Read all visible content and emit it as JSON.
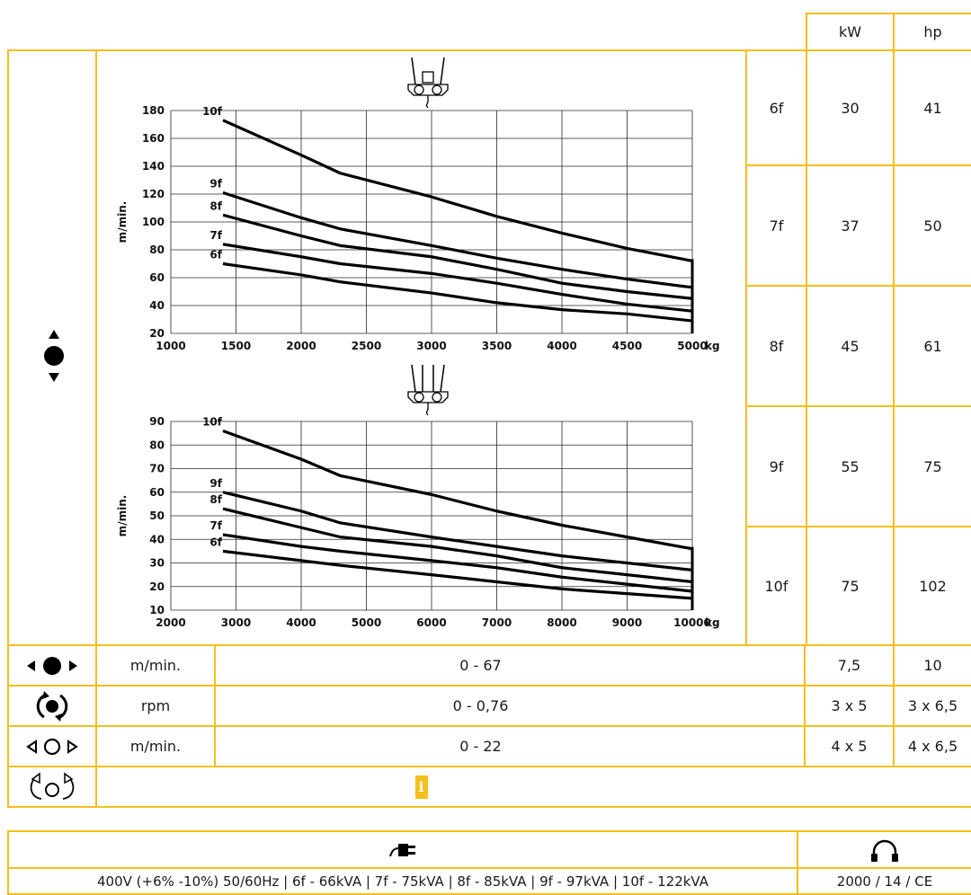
{
  "header": {
    "kw": "kW",
    "hp": "hp"
  },
  "power_rows": [
    {
      "label": "6f",
      "kw": "30",
      "hp": "41"
    },
    {
      "label": "7f",
      "kw": "37",
      "hp": "50"
    },
    {
      "label": "8f",
      "kw": "45",
      "hp": "61"
    },
    {
      "label": "9f",
      "kw": "55",
      "hp": "75"
    },
    {
      "label": "10f",
      "kw": "75",
      "hp": "102"
    }
  ],
  "drive_rows": [
    {
      "icon": "travel-filled-arrows-icon",
      "unit": "m/min.",
      "range": "0 - 67",
      "kw": "7,5",
      "hp": "10"
    },
    {
      "icon": "rotation-icon",
      "unit": "rpm",
      "range": "0 - 0,76",
      "kw": "3 x 5",
      "hp": "3 x 6,5"
    },
    {
      "icon": "travel-outline-arrows-icon",
      "unit": "m/min.",
      "range": "0 - 22",
      "kw": "4 x 5",
      "hp": "4 x 6,5"
    }
  ],
  "option_row": {
    "icon": "tilt-rotate-icon",
    "info": "i"
  },
  "supply": {
    "plug_icon": "power-plug-icon",
    "headphones_icon": "headphones-icon",
    "text": "400V (+6% -10%) 50/60Hz | 6f - 66kVA | 7f - 75kVA | 8f - 85kVA | 9f - 97kVA | 10f - 122kVA",
    "noise": "2000 / 14 / CE"
  },
  "chart_data": [
    {
      "type": "line",
      "title": "",
      "xlabel": "kg",
      "ylabel": "m/min.",
      "xlim": [
        1000,
        5000
      ],
      "ylim": [
        20,
        180
      ],
      "x_ticks": [
        "1000",
        "1500",
        "2000",
        "2500",
        "3000",
        "3500",
        "4000",
        "4500",
        "5000"
      ],
      "y_ticks": [
        "20",
        "40",
        "60",
        "80",
        "100",
        "120",
        "140",
        "160",
        "180"
      ],
      "grid": true,
      "series": [
        {
          "name": "10f",
          "x": [
            1400,
            2000,
            2300,
            3000,
            3500,
            4000,
            4500,
            5000
          ],
          "y": [
            173,
            148,
            135,
            118,
            104,
            92,
            81,
            72
          ]
        },
        {
          "name": "9f",
          "x": [
            1400,
            2000,
            2300,
            3000,
            3500,
            4000,
            4500,
            5000
          ],
          "y": [
            121,
            103,
            95,
            83,
            74,
            66,
            59,
            53
          ]
        },
        {
          "name": "8f",
          "x": [
            1400,
            2000,
            2300,
            3000,
            3500,
            4000,
            4500,
            5000
          ],
          "y": [
            105,
            90,
            83,
            75,
            66,
            56,
            50,
            45
          ]
        },
        {
          "name": "7f",
          "x": [
            1400,
            2000,
            2300,
            3000,
            3500,
            4000,
            4500,
            5000
          ],
          "y": [
            84,
            75,
            70,
            63,
            56,
            48,
            41,
            36
          ]
        },
        {
          "name": "6f",
          "x": [
            1400,
            2000,
            2300,
            3000,
            3500,
            4000,
            4500,
            5000
          ],
          "y": [
            70,
            62,
            57,
            49,
            42,
            37,
            34,
            29
          ]
        }
      ]
    },
    {
      "type": "line",
      "title": "",
      "xlabel": "kg",
      "ylabel": "m/min.",
      "xlim": [
        2000,
        10000
      ],
      "ylim": [
        10,
        90
      ],
      "x_ticks": [
        "2000",
        "3000",
        "4000",
        "5000",
        "6000",
        "7000",
        "8000",
        "9000",
        "10000"
      ],
      "y_ticks": [
        "10",
        "20",
        "30",
        "40",
        "50",
        "60",
        "70",
        "80",
        "90"
      ],
      "grid": true,
      "series": [
        {
          "name": "10f",
          "x": [
            2800,
            4000,
            4600,
            6000,
            7000,
            8000,
            9000,
            10000
          ],
          "y": [
            86,
            74,
            67,
            59,
            52,
            46,
            41,
            36
          ]
        },
        {
          "name": "9f",
          "x": [
            2800,
            4000,
            4600,
            6000,
            7000,
            8000,
            9000,
            10000
          ],
          "y": [
            60,
            52,
            47,
            41,
            37,
            33,
            30,
            27
          ]
        },
        {
          "name": "8f",
          "x": [
            2800,
            4000,
            4600,
            6000,
            7000,
            8000,
            9000,
            10000
          ],
          "y": [
            53,
            45,
            41,
            37,
            33,
            28,
            25,
            22
          ]
        },
        {
          "name": "7f",
          "x": [
            2800,
            4000,
            4600,
            6000,
            7000,
            8000,
            9000,
            10000
          ],
          "y": [
            42,
            37,
            35,
            31,
            28,
            24,
            21,
            18
          ]
        },
        {
          "name": "6f",
          "x": [
            2800,
            4000,
            4600,
            6000,
            7000,
            8000,
            9000,
            10000
          ],
          "y": [
            35,
            31,
            29,
            25,
            22,
            19,
            17,
            15
          ]
        }
      ]
    }
  ]
}
